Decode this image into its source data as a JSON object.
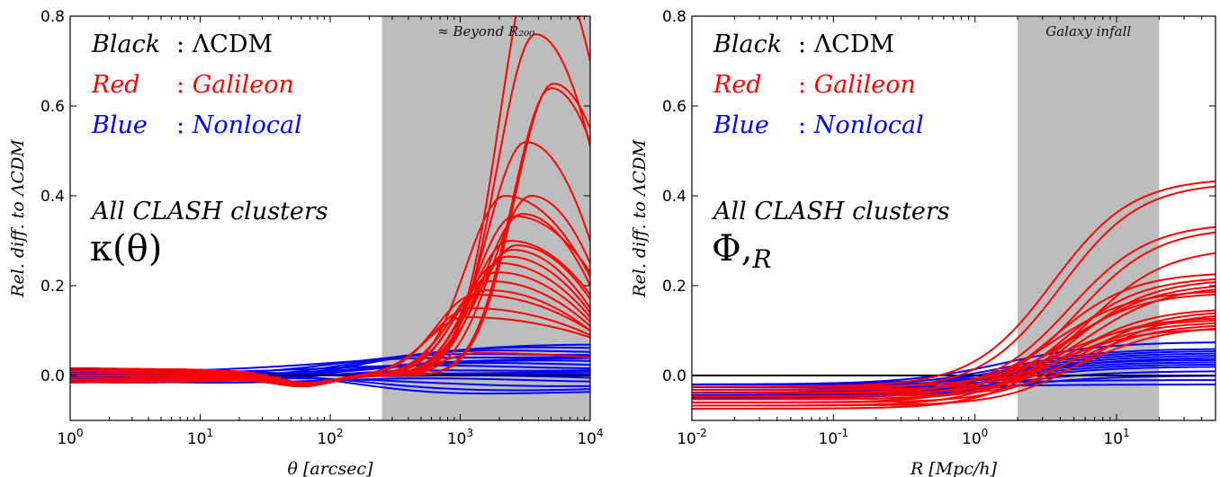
{
  "chart_data": [
    {
      "type": "line",
      "panel": "left",
      "xscale": "log",
      "xlim": [
        1,
        10000
      ],
      "ylim": [
        -0.1,
        0.8
      ],
      "xlabel": "θ [arcsec]",
      "ylabel": "Rel. diff. to ΛCDM",
      "xticks": [
        "10^0",
        "10^1",
        "10^2",
        "10^3",
        "10^4"
      ],
      "yticks": [
        "0.0",
        "0.2",
        "0.4",
        "0.6",
        "0.8"
      ],
      "legend": [
        {
          "word": "Black",
          "sep": ":",
          "text": "ΛCDM",
          "color": "#000000"
        },
        {
          "word": "Red",
          "sep": ":",
          "text": "Galileon",
          "color": "#ff0000"
        },
        {
          "word": "Blue",
          "sep": ":",
          "text": "Nonlocal",
          "color": "#0000ff"
        }
      ],
      "annotation_line1": "All CLASH clusters",
      "annotation_line2": "κ(θ)",
      "band": {
        "x0": 250,
        "x1": 10000,
        "label": "≈ Beyond R₂₀₀",
        "color": "#bdbdbd"
      },
      "red_series_peaks": [
        {
          "peak_x": 4000,
          "peak_y": 0.95,
          "end_y": 0.7
        },
        {
          "peak_x": 3800,
          "peak_y": 0.76,
          "end_y": 0.51
        },
        {
          "peak_x": 5200,
          "peak_y": 0.65,
          "end_y": 0.55
        },
        {
          "peak_x": 5000,
          "peak_y": 0.64,
          "end_y": 0.52
        },
        {
          "peak_x": 3200,
          "peak_y": 0.52,
          "end_y": 0.3
        },
        {
          "peak_x": 3500,
          "peak_y": 0.4,
          "end_y": 0.25
        },
        {
          "peak_x": 2200,
          "peak_y": 0.4,
          "end_y": 0.22
        },
        {
          "peak_x": 2600,
          "peak_y": 0.355,
          "end_y": 0.23
        },
        {
          "peak_x": 3000,
          "peak_y": 0.36,
          "end_y": 0.2
        },
        {
          "peak_x": 2400,
          "peak_y": 0.3,
          "end_y": 0.18
        },
        {
          "peak_x": 2700,
          "peak_y": 0.29,
          "end_y": 0.17
        },
        {
          "peak_x": 2500,
          "peak_y": 0.28,
          "end_y": 0.15
        },
        {
          "peak_x": 2300,
          "peak_y": 0.265,
          "end_y": 0.14
        },
        {
          "peak_x": 2000,
          "peak_y": 0.25,
          "end_y": 0.13
        },
        {
          "peak_x": 1900,
          "peak_y": 0.23,
          "end_y": 0.12
        },
        {
          "peak_x": 1700,
          "peak_y": 0.21,
          "end_y": 0.11
        },
        {
          "peak_x": 1600,
          "peak_y": 0.19,
          "end_y": 0.1
        },
        {
          "peak_x": 1300,
          "peak_y": 0.18,
          "end_y": 0.1
        },
        {
          "peak_x": 1200,
          "peak_y": 0.15,
          "end_y": 0.09
        },
        {
          "peak_x": 1100,
          "peak_y": 0.13,
          "end_y": 0.085
        },
        {
          "peak_x": 1400,
          "peak_y": 0.05,
          "end_y": 0.04
        }
      ],
      "blue_series_end": [
        0.065,
        0.06,
        0.055,
        0.05,
        0.045,
        0.04,
        0.035,
        0.03,
        0.025,
        0.02,
        0.015,
        0.01,
        0.005,
        0.0,
        -0.005,
        -0.01,
        -0.02,
        -0.03,
        -0.04
      ],
      "black_series_y": 0.0
    },
    {
      "type": "line",
      "panel": "right",
      "xscale": "log",
      "xlim": [
        0.01,
        50
      ],
      "ylim": [
        -0.1,
        0.8
      ],
      "xlabel": "R [Mpc/h]",
      "ylabel": "Rel. diff. to ΛCDM",
      "xticks": [
        "10^-2",
        "10^-1",
        "10^0",
        "10^1"
      ],
      "yticks": [
        "0.0",
        "0.2",
        "0.4",
        "0.6",
        "0.8"
      ],
      "legend": [
        {
          "word": "Black",
          "sep": ":",
          "text": "ΛCDM",
          "color": "#000000"
        },
        {
          "word": "Red",
          "sep": ":",
          "text": "Galileon",
          "color": "#ff0000"
        },
        {
          "word": "Blue",
          "sep": ":",
          "text": "Nonlocal",
          "color": "#0000ff"
        }
      ],
      "annotation_line1": "All CLASH clusters",
      "annotation_line2": "Φ,",
      "annotation_sub": "R",
      "band": {
        "x0": 2,
        "x1": 20,
        "label": "Galaxy infall",
        "color": "#bdbdbd"
      },
      "red_series_end": [
        0.44,
        0.43,
        0.34,
        0.33,
        0.285,
        0.23,
        0.22,
        0.215,
        0.205,
        0.2,
        0.19,
        0.185,
        0.15,
        0.145,
        0.14,
        0.13,
        0.125,
        0.12,
        0.115,
        0.11,
        0.105
      ],
      "blue_series_end": [
        0.075,
        0.06,
        0.055,
        0.05,
        0.045,
        0.04,
        0.035,
        0.03,
        0.025,
        0.02,
        0.01,
        0.0,
        -0.01,
        -0.02
      ],
      "black_series_y": 0.0
    }
  ]
}
